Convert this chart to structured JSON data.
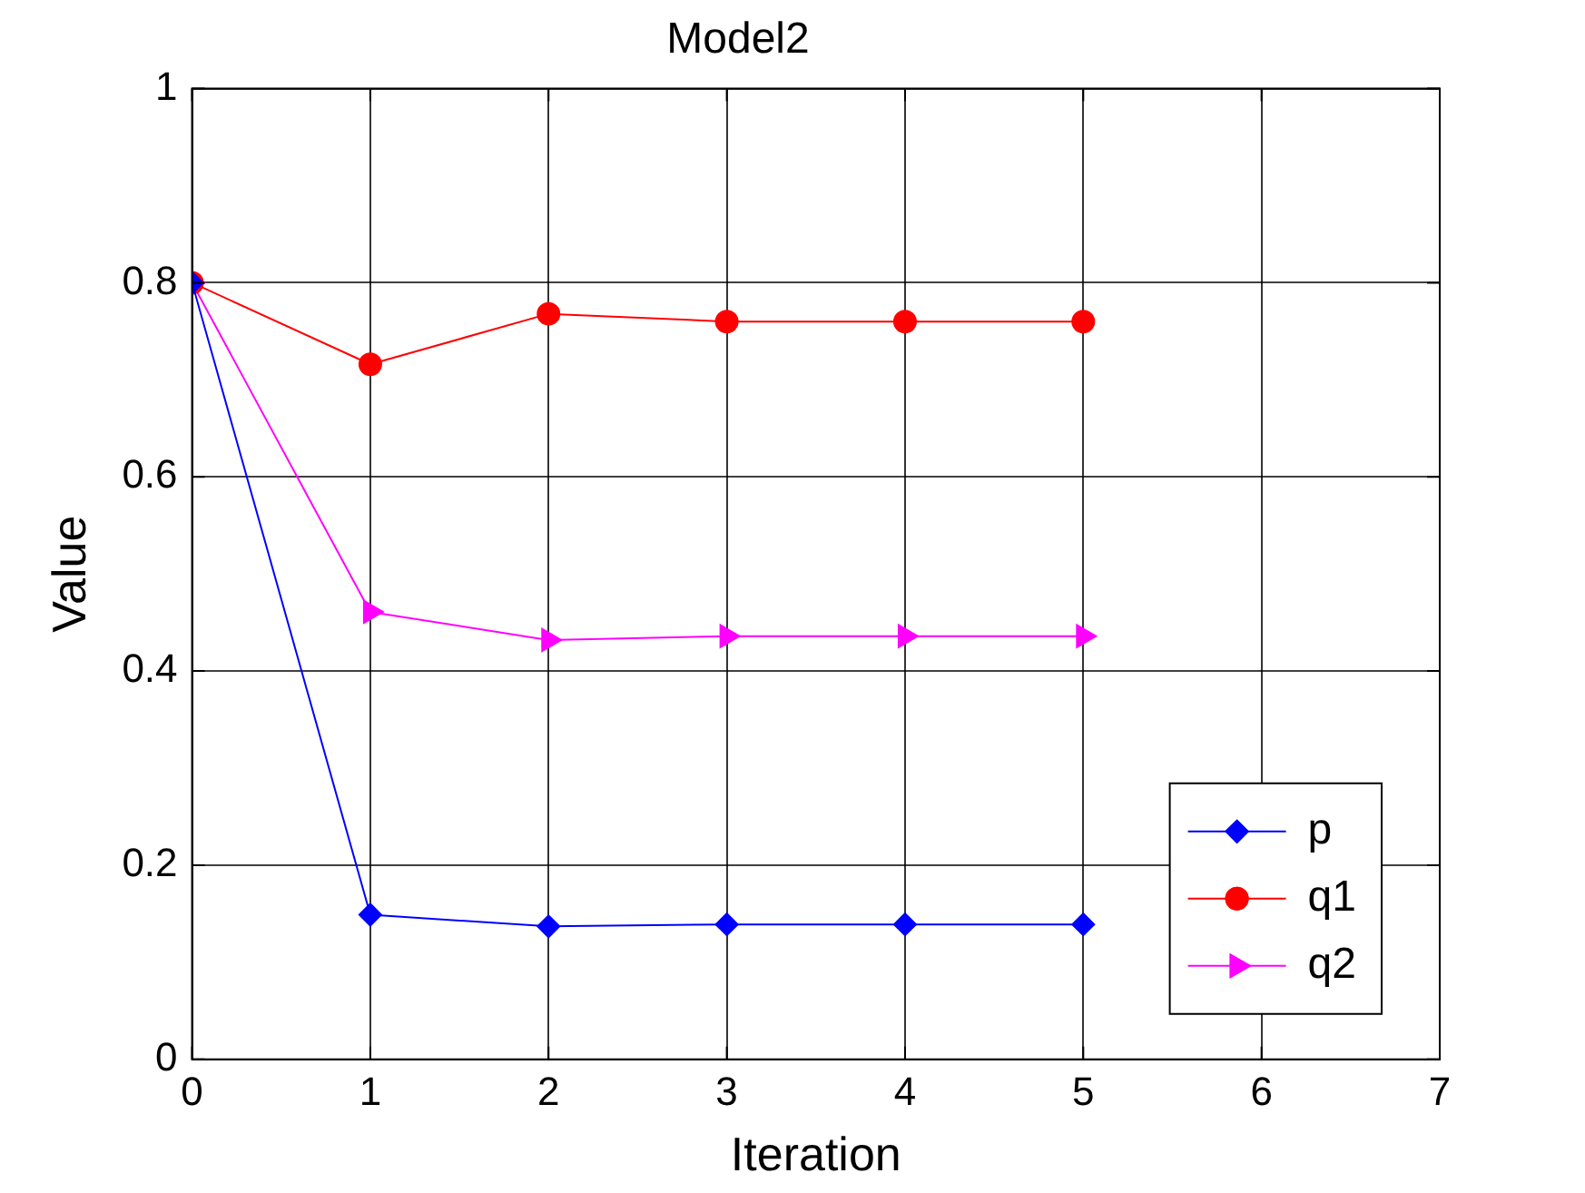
{
  "chart_data": {
    "type": "line",
    "title": "Model2",
    "xlabel": "Iteration",
    "ylabel": "Value",
    "x": [
      0,
      1,
      2,
      3,
      4,
      5
    ],
    "xlim": [
      0,
      7
    ],
    "xticks": [
      0,
      1,
      2,
      3,
      4,
      5,
      6,
      7
    ],
    "ylim": [
      0,
      1
    ],
    "yticks": [
      0,
      0.2,
      0.4,
      0.6,
      0.8,
      1
    ],
    "grid": true,
    "legend": "bottom right",
    "line_style": "solid",
    "series": [
      {
        "name": "p",
        "color": "#0000ff",
        "marker": "diamond",
        "values": [
          0.8,
          0.149,
          0.137,
          0.139,
          0.139,
          0.139
        ]
      },
      {
        "name": "q1",
        "color": "#ff0000",
        "marker": "circle",
        "values": [
          0.8,
          0.716,
          0.768,
          0.76,
          0.76,
          0.76
        ]
      },
      {
        "name": "q2",
        "color": "#ff00ff",
        "marker": "triangle",
        "values": [
          0.8,
          0.461,
          0.432,
          0.436,
          0.436,
          0.436
        ]
      }
    ]
  }
}
